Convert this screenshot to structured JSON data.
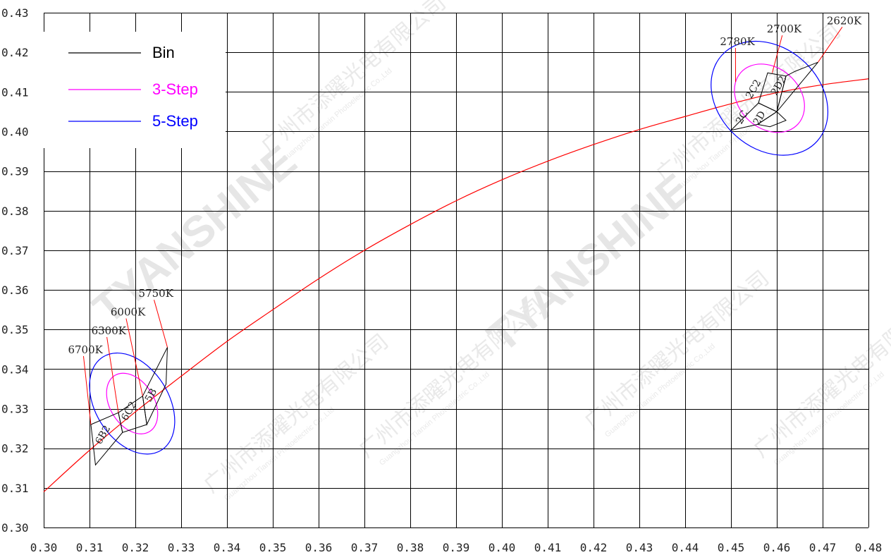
{
  "chart_data": {
    "type": "line",
    "xlim": [
      0.3,
      0.48
    ],
    "ylim": [
      0.3,
      0.43
    ],
    "grid": true,
    "legend_position": "top-left",
    "x_ticks": [
      "0.30",
      "0.31",
      "0.32",
      "0.33",
      "0.34",
      "0.35",
      "0.36",
      "0.37",
      "0.38",
      "0.39",
      "0.40",
      "0.41",
      "0.42",
      "0.43",
      "0.44",
      "0.45",
      "0.46",
      "0.47",
      "0.48"
    ],
    "y_ticks": [
      "0.30",
      "0.31",
      "0.32",
      "0.33",
      "0.34",
      "0.35",
      "0.36",
      "0.37",
      "0.38",
      "0.39",
      "0.40",
      "0.41",
      "0.42",
      "0.43"
    ],
    "legend": [
      {
        "key": "bin",
        "label": "Bin",
        "color": "#000000"
      },
      {
        "key": "step3",
        "label": "3-Step",
        "color": "#ff00ff"
      },
      {
        "key": "step5",
        "label": "5-Step",
        "color": "#0000ff"
      }
    ],
    "blackbody_curve": {
      "color": "#ff0000",
      "x": [
        0.3,
        0.31,
        0.32,
        0.33,
        0.34,
        0.35,
        0.36,
        0.37,
        0.38,
        0.39,
        0.4,
        0.41,
        0.42,
        0.43,
        0.44,
        0.45,
        0.46,
        0.47,
        0.48
      ],
      "y": [
        0.309,
        0.3195,
        0.3292,
        0.3382,
        0.347,
        0.355,
        0.3628,
        0.37,
        0.3765,
        0.3825,
        0.3878,
        0.3925,
        0.3967,
        0.4005,
        0.4038,
        0.407,
        0.4098,
        0.4118,
        0.4133
      ]
    },
    "bins": [
      {
        "label": "6B2",
        "label_xy": [
          0.3135,
          0.323
        ],
        "points": [
          [
            0.3103,
            0.326
          ],
          [
            0.3163,
            0.329
          ],
          [
            0.3172,
            0.324
          ],
          [
            0.3113,
            0.3158
          ]
        ]
      },
      {
        "label": "6C2",
        "label_xy": [
          0.3192,
          0.329
        ],
        "points": [
          [
            0.3163,
            0.329
          ],
          [
            0.3216,
            0.3332
          ],
          [
            0.3225,
            0.326
          ],
          [
            0.3172,
            0.324
          ]
        ]
      },
      {
        "label": "5B",
        "label_xy": [
          0.324,
          0.333
        ],
        "points": [
          [
            0.3216,
            0.3332
          ],
          [
            0.327,
            0.3455
          ],
          [
            0.3267,
            0.3362
          ],
          [
            0.3225,
            0.326
          ]
        ]
      },
      {
        "label": "2C",
        "label_xy": [
          0.453,
          0.4032
        ],
        "points": [
          [
            0.45,
            0.4003
          ],
          [
            0.456,
            0.4072
          ],
          [
            0.46,
            0.405
          ],
          [
            0.4558,
            0.4018
          ]
        ]
      },
      {
        "label": "2D",
        "label_xy": [
          0.4568,
          0.403
        ],
        "points": [
          [
            0.4558,
            0.4018
          ],
          [
            0.46,
            0.405
          ],
          [
            0.462,
            0.4028
          ],
          [
            0.4585,
            0.4012
          ]
        ]
      },
      {
        "label": "2C2",
        "label_xy": [
          0.4555,
          0.4103
        ],
        "points": [
          [
            0.456,
            0.4072
          ],
          [
            0.46,
            0.405
          ],
          [
            0.462,
            0.414
          ],
          [
            0.458,
            0.4148
          ]
        ]
      },
      {
        "label": "2D2",
        "label_xy": [
          0.461,
          0.4112
        ],
        "points": [
          [
            0.46,
            0.405
          ],
          [
            0.469,
            0.4175
          ],
          [
            0.464,
            0.4152
          ],
          [
            0.462,
            0.414
          ]
        ]
      }
    ],
    "ellipses": [
      {
        "step": "5-Step",
        "color": "#0000ff",
        "cx": 0.3193,
        "cy": 0.3313,
        "rx": 0.008,
        "ry": 0.012,
        "rotate": -32
      },
      {
        "step": "3-Step",
        "color": "#ff00ff",
        "cx": 0.3193,
        "cy": 0.3313,
        "rx": 0.0048,
        "ry": 0.0072,
        "rotate": -32
      },
      {
        "step": "5-Step",
        "color": "#0000ff",
        "cx": 0.4584,
        "cy": 0.4084,
        "rx": 0.011,
        "ry": 0.014,
        "rotate": -48
      },
      {
        "step": "3-Step",
        "color": "#ff00ff",
        "cx": 0.4584,
        "cy": 0.4084,
        "rx": 0.0066,
        "ry": 0.0084,
        "rotate": -48
      }
    ],
    "cct_annotations": [
      {
        "label": "6700K",
        "label_xy": [
          0.3053,
          0.344
        ],
        "line_to": [
          0.3103,
          0.326
        ]
      },
      {
        "label": "6300K",
        "label_xy": [
          0.3104,
          0.3488
        ],
        "line_to": [
          0.3163,
          0.329
        ]
      },
      {
        "label": "6000K",
        "label_xy": [
          0.3146,
          0.3535
        ],
        "line_to": [
          0.3216,
          0.3332
        ]
      },
      {
        "label": "5750K",
        "label_xy": [
          0.3207,
          0.3582
        ],
        "line_to": [
          0.327,
          0.3455
        ]
      },
      {
        "label": "2780K",
        "label_xy": [
          0.4476,
          0.4218
        ],
        "line_to": [
          0.451,
          0.4125
        ]
      },
      {
        "label": "2700K",
        "label_xy": [
          0.4578,
          0.425
        ],
        "line_to": [
          0.459,
          0.4148
        ]
      },
      {
        "label": "2620K",
        "label_xy": [
          0.4709,
          0.4271
        ],
        "line_to": [
          0.469,
          0.4175
        ]
      }
    ]
  },
  "watermark": {
    "brand": "TYANSHINE",
    "company_cn": "广州市添曜光电有限公司",
    "company_en": "Guangzhou Tianxin Photoelectric Co.,Ltd"
  }
}
